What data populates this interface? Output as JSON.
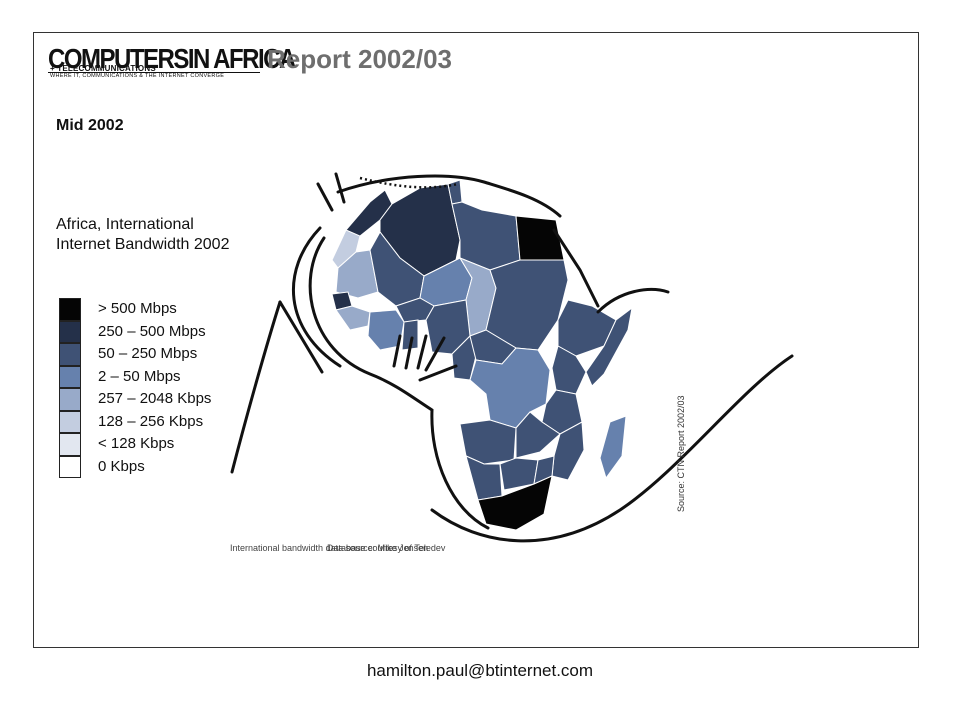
{
  "header": {
    "logo_main": "COMPUTERSIN AFRICA",
    "logo_sub1": "+ TELECOMMUNICATIONS",
    "logo_sub2": "WHERE IT, COMMUNICATIONS & THE INTERNET CONVERGE",
    "report_title": "Report 2002/03"
  },
  "subtitle": "Mid 2002",
  "legend": {
    "title": "Africa, International Internet Bandwidth 2002",
    "items": [
      {
        "label": "> 500 Mbps",
        "color": "#050505"
      },
      {
        "label": "250 – 500 Mbps",
        "color": "#243049"
      },
      {
        "label": "50 – 250 Mbps",
        "color": "#3f5275"
      },
      {
        "label": "2 – 50 Mbps",
        "color": "#6681ad"
      },
      {
        "label": "257 – 2048 Kbps",
        "color": "#98aac9"
      },
      {
        "label": "128 – 256 Kbps",
        "color": "#c3cde0"
      },
      {
        "label": "< 128 Kbps",
        "color": "#e2e7f0"
      },
      {
        "label": "0 Kbps",
        "color": "#ffffff"
      }
    ]
  },
  "map": {
    "source_vertical": "Source: CTN Report 2002/03",
    "credit_a": "International bandwidth data source: Mike Jensen",
    "credit_b": "Database courtesy of Teledev"
  },
  "footer": {
    "email": "hamilton.paul@btinternet.com"
  }
}
